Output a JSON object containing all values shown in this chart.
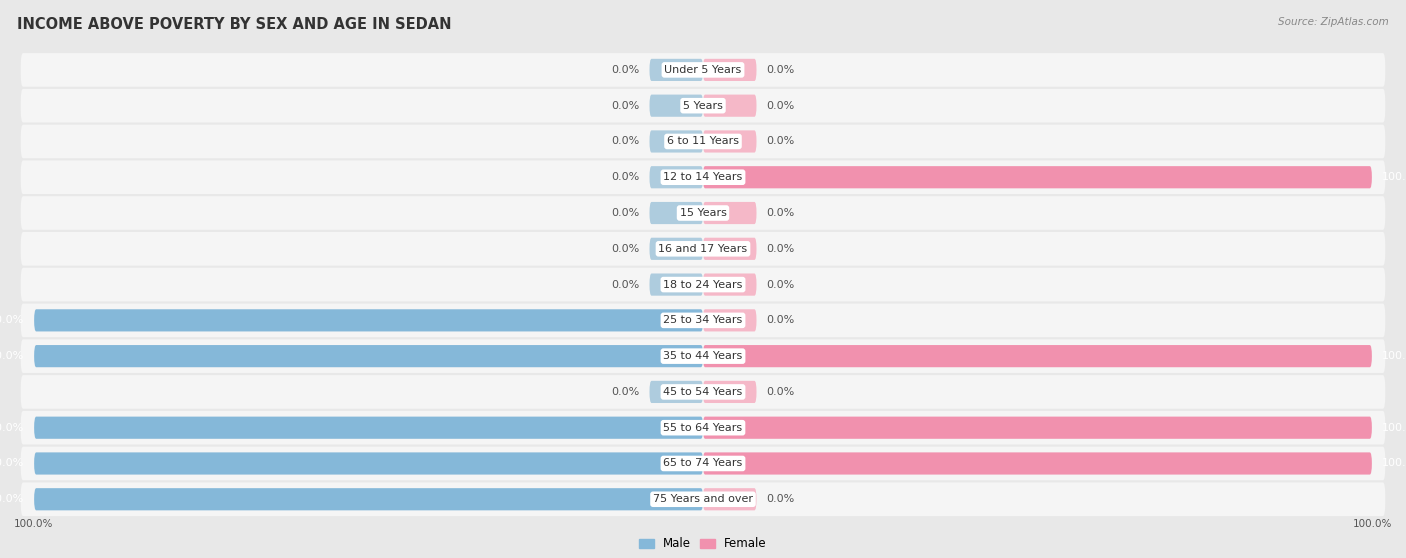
{
  "title": "INCOME ABOVE POVERTY BY SEX AND AGE IN SEDAN",
  "source": "Source: ZipAtlas.com",
  "categories": [
    "Under 5 Years",
    "5 Years",
    "6 to 11 Years",
    "12 to 14 Years",
    "15 Years",
    "16 and 17 Years",
    "18 to 24 Years",
    "25 to 34 Years",
    "35 to 44 Years",
    "45 to 54 Years",
    "55 to 64 Years",
    "65 to 74 Years",
    "75 Years and over"
  ],
  "male": [
    0.0,
    0.0,
    0.0,
    0.0,
    0.0,
    0.0,
    0.0,
    100.0,
    100.0,
    0.0,
    100.0,
    100.0,
    100.0
  ],
  "female": [
    0.0,
    0.0,
    0.0,
    100.0,
    0.0,
    0.0,
    0.0,
    0.0,
    100.0,
    0.0,
    100.0,
    100.0,
    0.0
  ],
  "male_color": "#85b8d9",
  "female_color": "#f191ae",
  "male_zero_color": "#aeccde",
  "female_zero_color": "#f5b8c8",
  "bg_color": "#e8e8e8",
  "row_bg_color": "#f5f5f5",
  "title_fontsize": 10.5,
  "label_fontsize": 8.0,
  "bar_height": 0.62,
  "legend_male": "Male",
  "legend_female": "Female",
  "zero_stub": 8.0,
  "xlim": 100.0
}
